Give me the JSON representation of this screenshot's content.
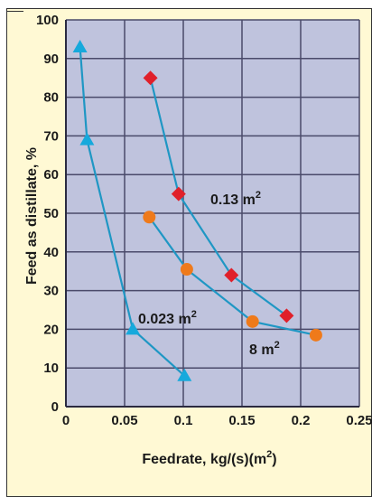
{
  "chart_data": {
    "type": "line",
    "title": "",
    "xlabel": "Feedrate, kg/(s)(m",
    "xlabel_sup": "2",
    "xlabel_close": ")",
    "ylabel": "Feed as distillate, %",
    "xlim": [
      0,
      0.25
    ],
    "ylim": [
      0,
      100
    ],
    "x_ticks": [
      0,
      0.05,
      0.1,
      0.15,
      0.2,
      0.25
    ],
    "x_tick_labels": [
      "0",
      "0.05",
      "0.1",
      "0.15",
      "0.2",
      "0.25"
    ],
    "y_ticks": [
      0,
      10,
      20,
      30,
      40,
      50,
      60,
      70,
      80,
      90,
      100
    ],
    "y_tick_labels": [
      "0",
      "10",
      "20",
      "30",
      "40",
      "50",
      "60",
      "70",
      "80",
      "90",
      "100"
    ],
    "grid": true,
    "line_color": "#1f97c4",
    "series": [
      {
        "marker": "triangle",
        "color": "#16a9dc",
        "label": "0.023 m",
        "label_sup": "2",
        "points": [
          {
            "x": 0.012,
            "y": 93
          },
          {
            "x": 0.018,
            "y": 69
          },
          {
            "x": 0.057,
            "y": 20
          },
          {
            "x": 0.101,
            "y": 8
          }
        ]
      },
      {
        "marker": "diamond",
        "color": "#e0202a",
        "label": "0.13 m",
        "label_sup": "2",
        "points": [
          {
            "x": 0.072,
            "y": 85
          },
          {
            "x": 0.096,
            "y": 55
          },
          {
            "x": 0.141,
            "y": 34
          },
          {
            "x": 0.188,
            "y": 23.5
          }
        ]
      },
      {
        "marker": "circle",
        "color": "#ef7a1a",
        "label": "8 m",
        "label_sup": "2",
        "points": [
          {
            "x": 0.071,
            "y": 49
          },
          {
            "x": 0.103,
            "y": 35.5
          },
          {
            "x": 0.159,
            "y": 22
          },
          {
            "x": 0.213,
            "y": 18.5
          }
        ]
      }
    ]
  }
}
